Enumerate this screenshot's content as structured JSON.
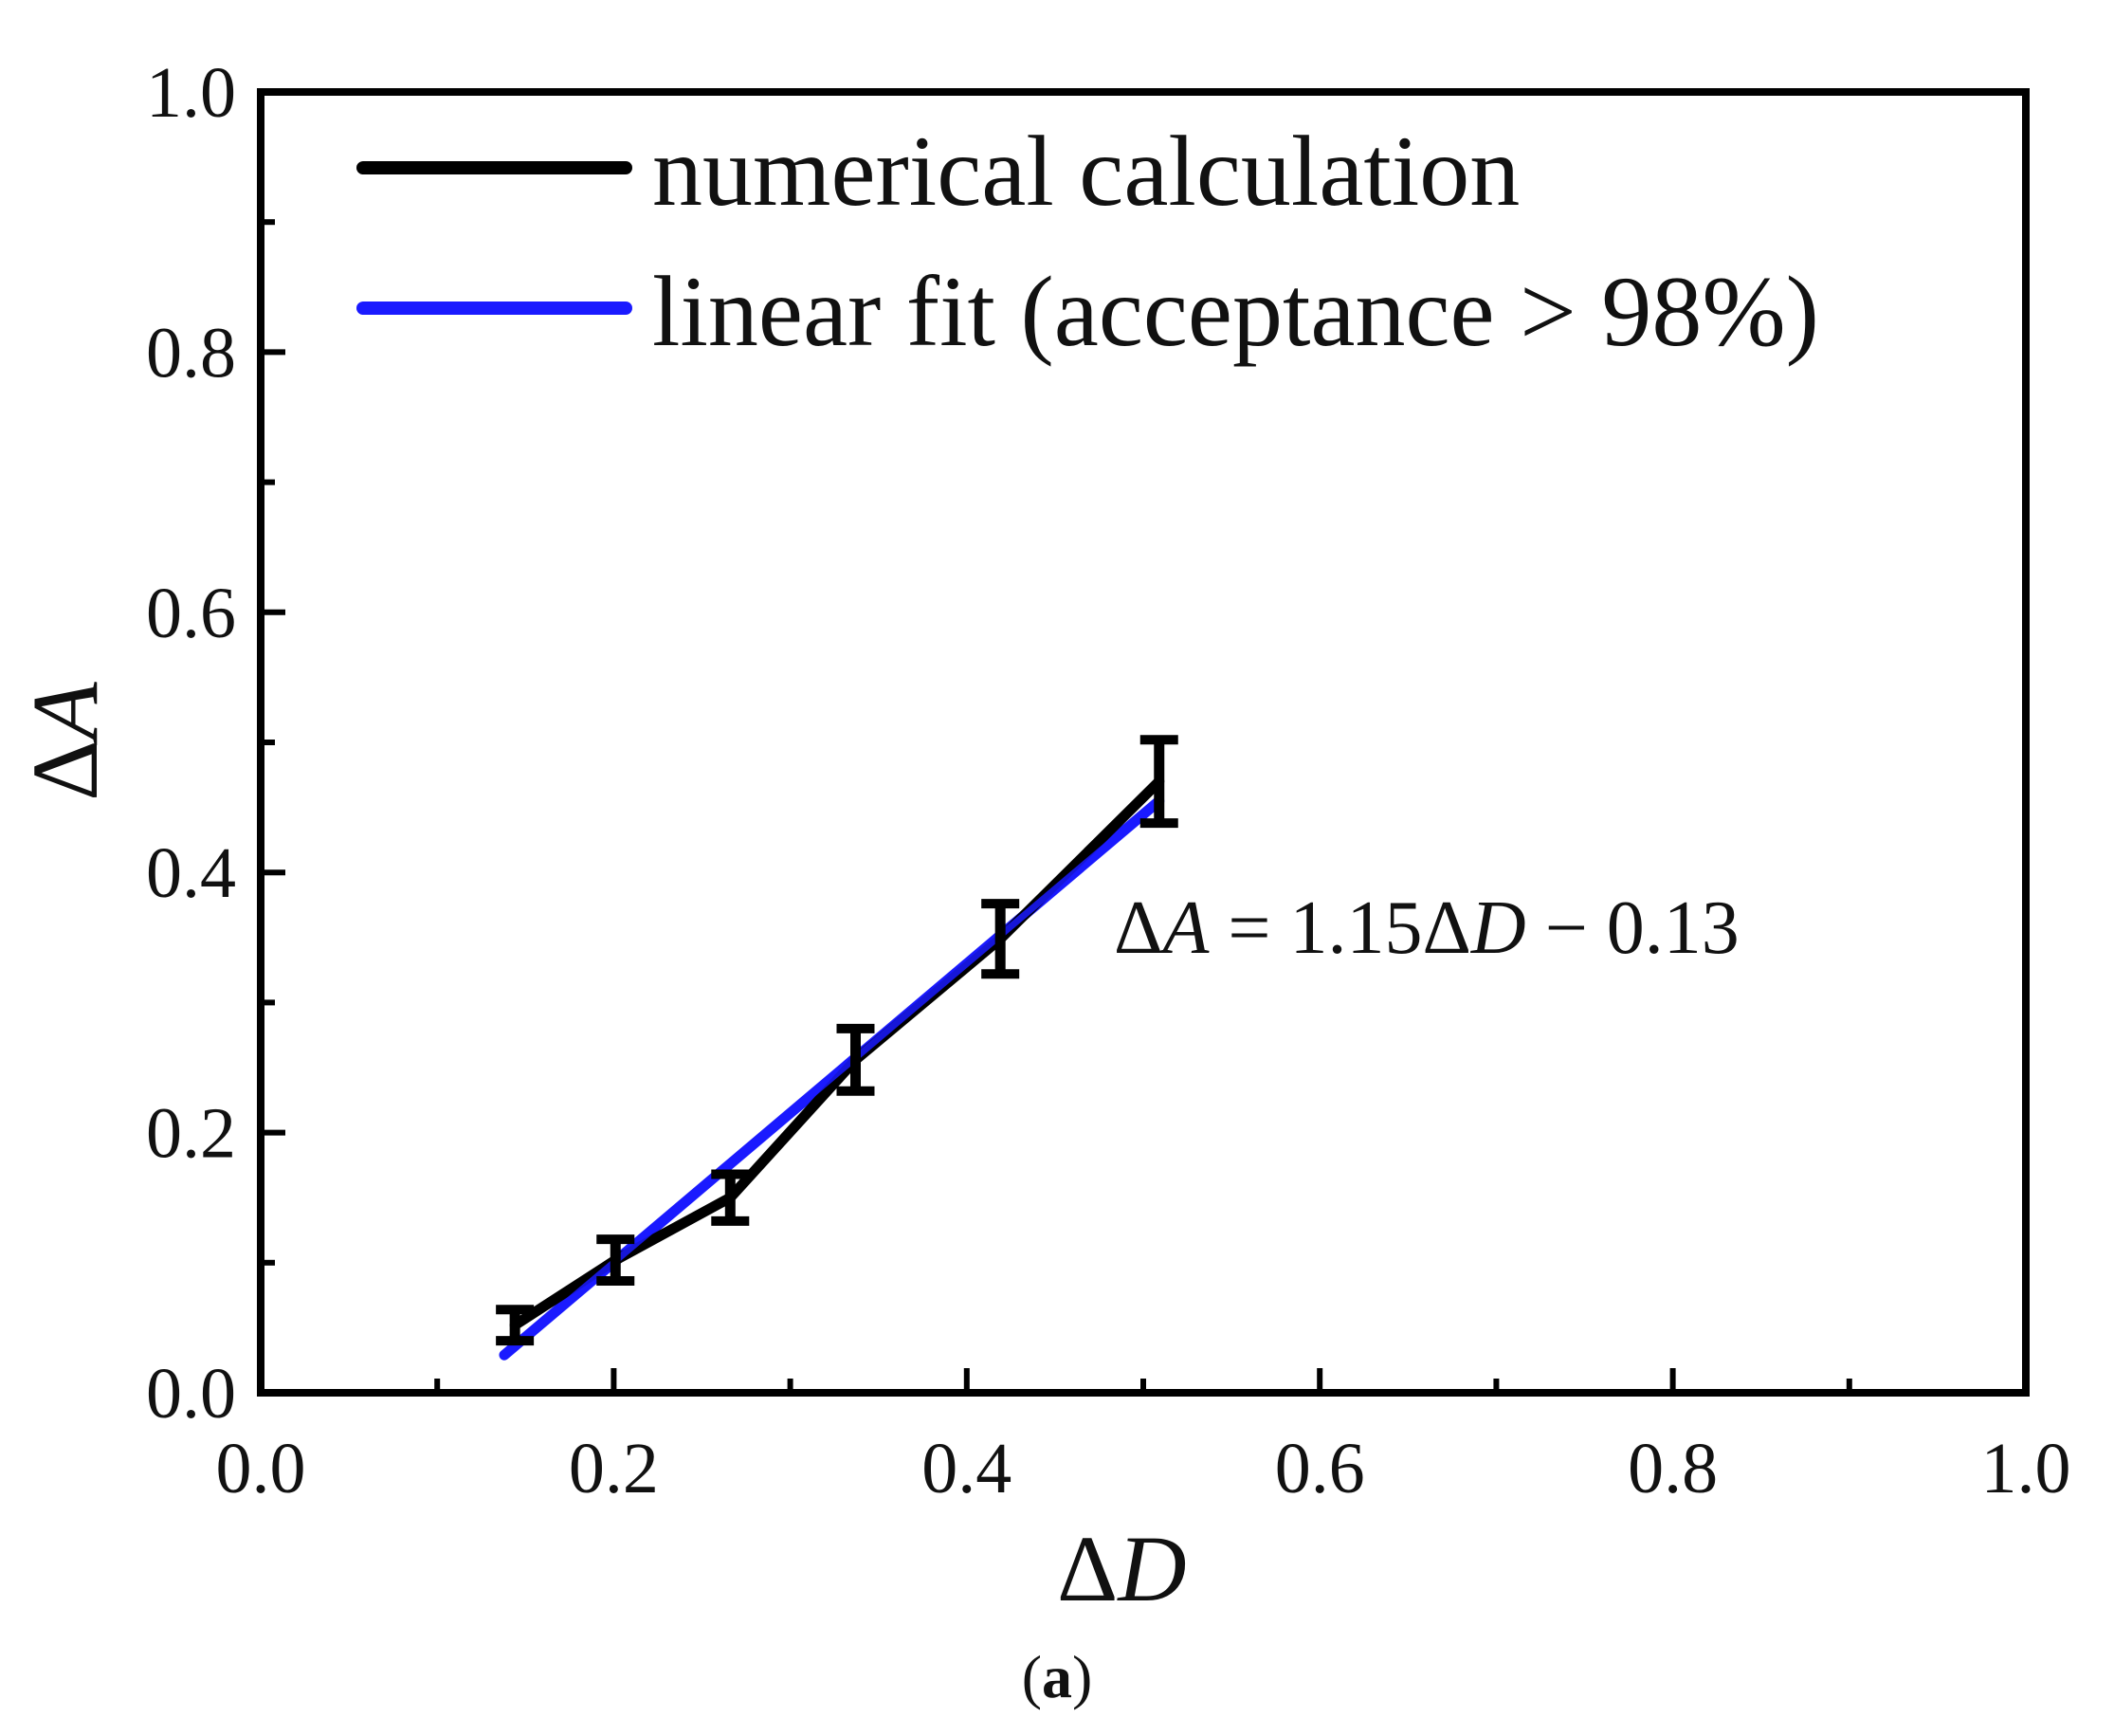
{
  "chart_data": {
    "type": "line",
    "title": "",
    "xlabel": "ΔD",
    "ylabel": "ΔA",
    "xlim": [
      0.0,
      1.0
    ],
    "ylim": [
      0.0,
      1.0
    ],
    "x_ticks": [
      "0.0",
      "0.2",
      "0.4",
      "0.6",
      "0.8",
      "1.0"
    ],
    "y_ticks": [
      "0.0",
      "0.2",
      "0.4",
      "0.6",
      "0.8",
      "1.0"
    ],
    "x_tick_values": [
      0.0,
      0.2,
      0.4,
      0.6,
      0.8,
      1.0
    ],
    "y_tick_values": [
      0.0,
      0.2,
      0.4,
      0.6,
      0.8,
      1.0
    ],
    "grid": false,
    "legend_position": "top-left",
    "series": [
      {
        "name": "numerical calculation",
        "color": "#000000",
        "x": [
          0.144,
          0.201,
          0.266,
          0.337,
          0.419,
          0.509
        ],
        "y": [
          0.052,
          0.102,
          0.15,
          0.256,
          0.349,
          0.47
        ],
        "err": [
          0.012,
          0.016,
          0.018,
          0.024,
          0.027,
          0.032
        ]
      },
      {
        "name": "linear fit (acceptance > 98%)",
        "color": "#1a1aff",
        "x": [
          0.138,
          0.509
        ],
        "y": [
          0.029,
          0.455
        ]
      }
    ],
    "annotation": {
      "lhs_delta": "Δ",
      "lhs_var": "A",
      "middle": " = 1.15",
      "rhs_delta": "Δ",
      "rhs_var": "D",
      "tail": " − 0.13"
    },
    "caption": {
      "open": "(",
      "letter": "a",
      "close": ")"
    },
    "axis_symbols": {
      "x_delta": "Δ",
      "x_var": "D",
      "y_delta": "Δ",
      "y_var": "A"
    }
  }
}
